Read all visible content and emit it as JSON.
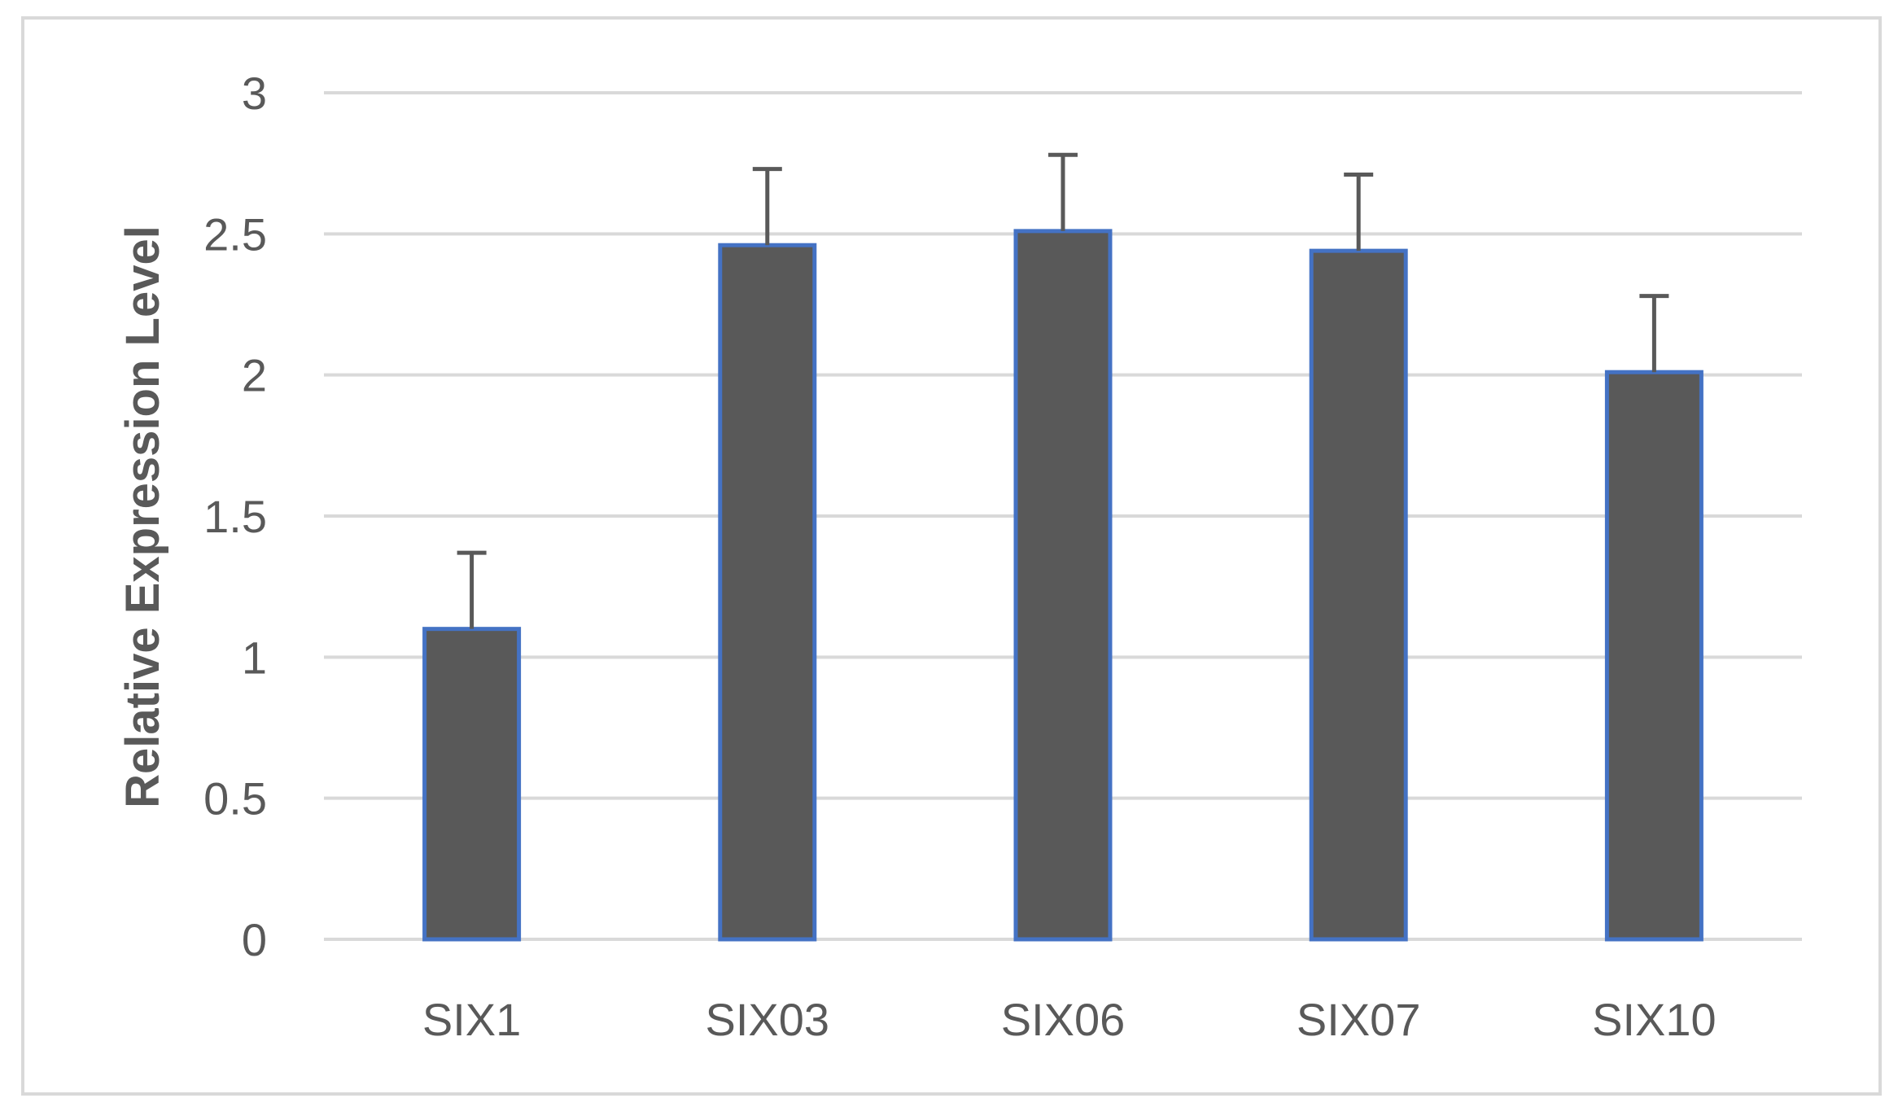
{
  "chart_data": {
    "type": "bar",
    "title": "",
    "xlabel": "",
    "ylabel": "Relative Expression Level",
    "categories": [
      "SIX1",
      "SIX03",
      "SIX06",
      "SIX07",
      "SIX10"
    ],
    "values": [
      1.1,
      2.46,
      2.51,
      2.44,
      2.01
    ],
    "error_upper": [
      0.27,
      0.27,
      0.27,
      0.27,
      0.27
    ],
    "ylim": [
      0,
      3
    ],
    "yticks": [
      0,
      0.5,
      1,
      1.5,
      2,
      2.5,
      3
    ],
    "ytick_labels": [
      "0",
      "0.5",
      "1",
      "1.5",
      "2",
      "2.5",
      "3"
    ],
    "grid": true,
    "legend": "none",
    "colors": {
      "bar_fill": "#595959",
      "bar_edge": "#4472c4",
      "error_bar": "#595959",
      "grid": "#d9d9d9",
      "text": "#595959"
    }
  }
}
